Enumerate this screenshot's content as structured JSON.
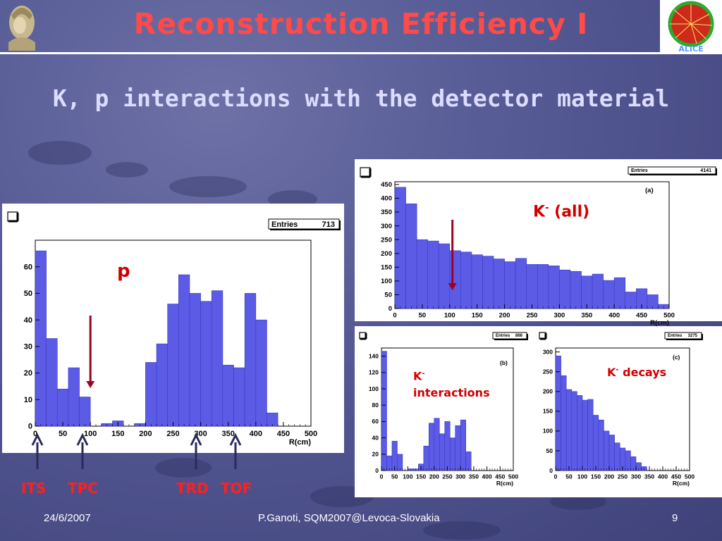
{
  "slide": {
    "title": "Reconstruction Efficiency I",
    "subtitle": "K, p interactions with the detector material",
    "footer_date": "24/6/2007",
    "footer_center": "P.Ganoti, SQM2007@Levoca-Slovakia",
    "footer_page": "9",
    "logo_right_text": "ALICE"
  },
  "annotations": {
    "p_label": "p",
    "k_all_main": "K",
    "k_all_sup": "-",
    "k_all_rest": "(all)",
    "k_int_main": "K",
    "k_int_sup": "-",
    "k_int_rest": "interactions",
    "k_dec_main": "K",
    "k_dec_sup": "-",
    "k_dec_rest": "decays",
    "detectors": [
      "ITS",
      "TPC",
      "TRD",
      "TOF"
    ]
  },
  "colors": {
    "title": "#ff4a4a",
    "hist_fill": "#5b5be6",
    "arrow_red": "#a00020",
    "arrow_dark": "#2a2a5a",
    "label_red": "#d00000"
  },
  "chart_data": [
    {
      "id": "p",
      "type": "bar",
      "entries_label": "Entries",
      "entries": "713",
      "panel_tag": "",
      "xlabel": "R(cm)",
      "ylabel": "",
      "xlim": [
        0,
        500
      ],
      "ylim": [
        0,
        70
      ],
      "bin_width": 20,
      "x_ticks": [
        0,
        50,
        100,
        150,
        200,
        250,
        300,
        350,
        400,
        450,
        500
      ],
      "y_ticks": [
        0,
        10,
        20,
        30,
        40,
        50,
        60
      ],
      "values": [
        66,
        33,
        14,
        22,
        11,
        0,
        1,
        2,
        0,
        1,
        24,
        31,
        46,
        57,
        50,
        47,
        51,
        23,
        22,
        50,
        40,
        5,
        0,
        0,
        0
      ],
      "arrow_r": 100
    },
    {
      "id": "k_all",
      "type": "bar",
      "entries_label": "Entries",
      "entries": "4141",
      "panel_tag": "(a)",
      "xlabel": "R(cm)",
      "ylabel": "",
      "xlim": [
        0,
        500
      ],
      "ylim": [
        0,
        460
      ],
      "bin_width": 20,
      "x_ticks": [
        0,
        50,
        100,
        150,
        200,
        250,
        300,
        350,
        400,
        450,
        500
      ],
      "y_ticks": [
        0,
        50,
        100,
        150,
        200,
        250,
        300,
        350,
        400,
        450
      ],
      "values": [
        440,
        380,
        250,
        245,
        235,
        210,
        205,
        195,
        190,
        180,
        170,
        182,
        160,
        160,
        155,
        140,
        135,
        118,
        125,
        102,
        112,
        60,
        72,
        50,
        15
      ],
      "arrow_r": 105
    },
    {
      "id": "k_int",
      "type": "bar",
      "entries_label": "Entries",
      "entries": "866",
      "panel_tag": "(b)",
      "xlabel": "R(cm)",
      "ylabel": "",
      "xlim": [
        0,
        500
      ],
      "ylim": [
        0,
        150
      ],
      "bin_width": 20,
      "x_ticks": [
        0,
        50,
        100,
        150,
        200,
        250,
        300,
        350,
        400,
        450,
        500
      ],
      "y_ticks": [
        0,
        20,
        40,
        60,
        80,
        100,
        120,
        140
      ],
      "values": [
        146,
        18,
        36,
        20,
        0,
        2,
        2,
        8,
        30,
        58,
        64,
        45,
        60,
        40,
        55,
        62,
        23,
        0,
        0,
        0,
        0,
        0,
        0,
        0,
        0
      ]
    },
    {
      "id": "k_dec",
      "type": "bar",
      "entries_label": "Entries",
      "entries": "3275",
      "panel_tag": "(c)",
      "xlabel": "R(cm)",
      "ylabel": "",
      "xlim": [
        0,
        500
      ],
      "ylim": [
        0,
        310
      ],
      "bin_width": 20,
      "x_ticks": [
        0,
        50,
        100,
        150,
        200,
        250,
        300,
        350,
        400,
        450,
        500
      ],
      "y_ticks": [
        0,
        50,
        100,
        150,
        200,
        250,
        300
      ],
      "values": [
        290,
        240,
        205,
        200,
        190,
        178,
        180,
        140,
        128,
        100,
        90,
        70,
        57,
        50,
        35,
        20,
        10,
        0,
        0,
        0,
        0,
        0,
        0,
        0,
        0
      ]
    }
  ]
}
